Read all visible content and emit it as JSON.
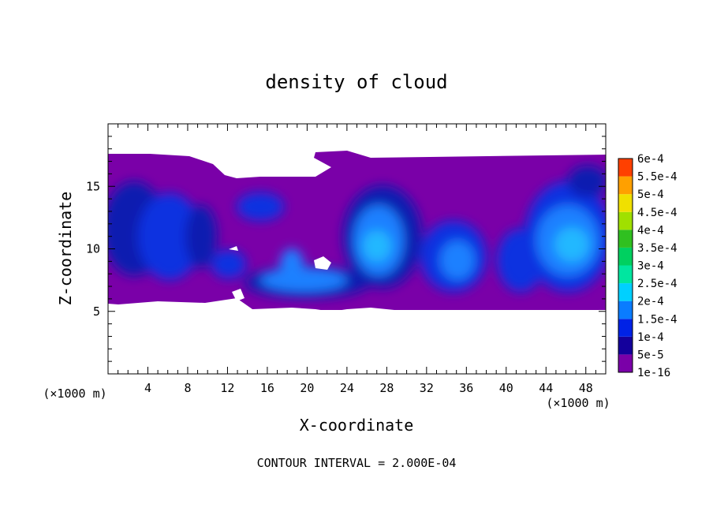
{
  "chart_data": {
    "type": "heatmap",
    "title": "density of cloud",
    "xlabel": "X-coordinate",
    "ylabel": "Z-coordinate",
    "x_unit_left": "(×1000 m)",
    "x_unit_right": "(×1000 m)",
    "footer": "CONTOUR INTERVAL = 2.000E-04",
    "xlim": [
      0,
      50
    ],
    "ylim": [
      0,
      20
    ],
    "x_ticks": [
      4,
      8,
      12,
      16,
      20,
      24,
      28,
      32,
      36,
      40,
      44,
      48
    ],
    "y_ticks": [
      5,
      10,
      15
    ],
    "cloud_top_z": 17.5,
    "cloud_base_z": 5.2,
    "colorbar": {
      "levels": [
        "1e-16",
        "5e-5",
        "1e-4",
        "1.5e-4",
        "2e-4",
        "2.5e-4",
        "3e-4",
        "3.5e-4",
        "4e-4",
        "4.5e-4",
        "5e-4",
        "5.5e-4",
        "6e-4"
      ],
      "colors": [
        "#7a00a8",
        "#14009c",
        "#0022e6",
        "#0a7cff",
        "#00d0ff",
        "#00e6a0",
        "#00d060",
        "#30c020",
        "#a0e000",
        "#f0e000",
        "#ffa000",
        "#ff4000",
        "#ff2000",
        "#f08080"
      ]
    },
    "colors": {
      "bg_band": "#7a00a8",
      "mid_blue": "#1030e0",
      "light_blue": "#1e80ff",
      "cyan": "#20b8ff"
    }
  }
}
